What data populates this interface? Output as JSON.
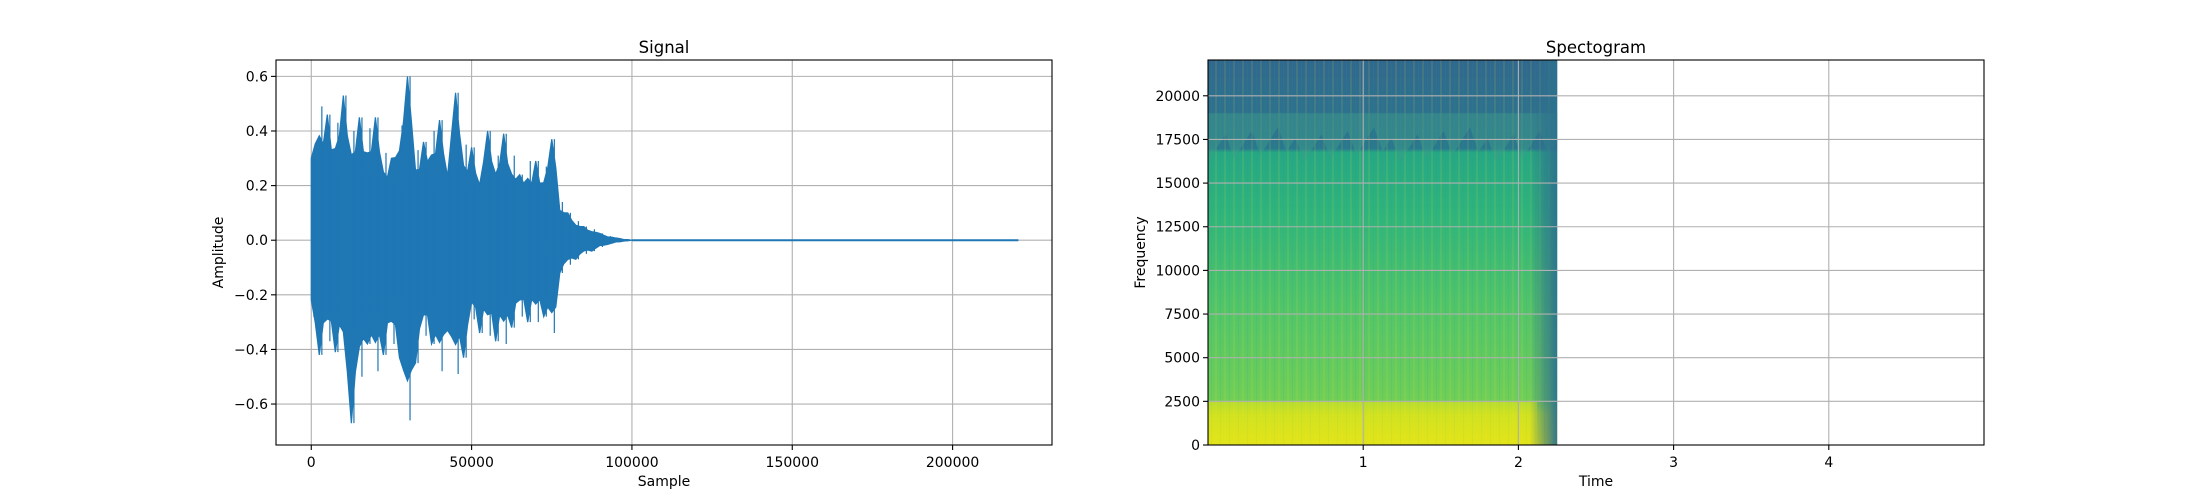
{
  "chart_data": [
    {
      "type": "line",
      "title": "Signal",
      "xlabel": "Sample",
      "ylabel": "Amplitude",
      "xlim": [
        -11000,
        231000
      ],
      "ylim": [
        -0.75,
        0.66
      ],
      "xticks": [
        0,
        50000,
        100000,
        150000,
        200000
      ],
      "xtick_labels": [
        "0",
        "50000",
        "100000",
        "150000",
        "200000"
      ],
      "yticks": [
        -0.6,
        -0.4,
        -0.2,
        0.0,
        0.2,
        0.4,
        0.6
      ],
      "ytick_labels": [
        "−0.6",
        "−0.4",
        "−0.2",
        "0.0",
        "0.2",
        "0.4",
        "0.6"
      ],
      "grid": true,
      "color": "#1f77b4",
      "series": [
        {
          "x": [
            0,
            2500,
            5000,
            7500,
            10000,
            12500,
            15000,
            17500,
            20000,
            22500,
            25000,
            27500,
            30000,
            32500,
            35000,
            37500,
            40000,
            42500,
            45000,
            47500,
            50000,
            52500,
            55000,
            57500,
            60000,
            62500,
            65000,
            67500,
            70000,
            72500,
            75000,
            77500,
            80000,
            82500,
            85000,
            87500,
            90000,
            92500,
            95000,
            97500,
            100000,
            220500
          ],
          "upper": [
            0.3,
            0.49,
            0.46,
            0.43,
            0.53,
            0.4,
            0.45,
            0.41,
            0.45,
            0.32,
            0.3,
            0.42,
            0.6,
            0.33,
            0.36,
            0.4,
            0.44,
            0.3,
            0.54,
            0.35,
            0.34,
            0.26,
            0.4,
            0.31,
            0.39,
            0.31,
            0.24,
            0.29,
            0.29,
            0.27,
            0.37,
            0.14,
            0.1,
            0.07,
            0.05,
            0.04,
            0.025,
            0.015,
            0.008,
            0.003,
            0.0,
            0.0
          ],
          "lower": [
            -0.28,
            -0.42,
            -0.37,
            -0.41,
            -0.43,
            -0.67,
            -0.5,
            -0.38,
            -0.48,
            -0.42,
            -0.38,
            -0.43,
            -0.66,
            -0.45,
            -0.35,
            -0.38,
            -0.48,
            -0.33,
            -0.49,
            -0.43,
            -0.29,
            -0.34,
            -0.35,
            -0.37,
            -0.38,
            -0.32,
            -0.28,
            -0.3,
            -0.3,
            -0.28,
            -0.34,
            -0.12,
            -0.09,
            -0.07,
            -0.05,
            -0.04,
            -0.025,
            -0.015,
            -0.008,
            -0.003,
            0.0,
            0.0
          ]
        }
      ]
    },
    {
      "type": "heatmap",
      "title": "Spectogram",
      "xlabel": "Time",
      "ylabel": "Frequency",
      "xlim": [
        0,
        5.0
      ],
      "ylim": [
        0,
        22050
      ],
      "xticks": [
        1,
        2,
        3,
        4
      ],
      "xtick_labels": [
        "1",
        "2",
        "3",
        "4"
      ],
      "yticks": [
        0,
        2500,
        5000,
        7500,
        10000,
        12500,
        15000,
        17500,
        20000
      ],
      "ytick_labels": [
        "0",
        "2500",
        "5000",
        "7500",
        "10000",
        "12500",
        "15000",
        "17500",
        "20000"
      ],
      "grid": true,
      "colormap": "viridis",
      "spectrogram_end_time": 2.25,
      "high_freq_cutoff_hz": 17000,
      "bright_band_hz": [
        0,
        2500
      ]
    }
  ]
}
